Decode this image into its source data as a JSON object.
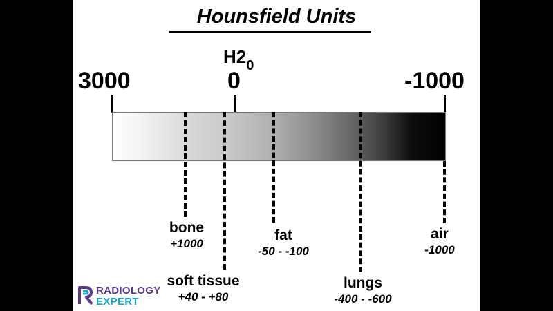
{
  "title": "Hounsfield Units",
  "water": {
    "main": "H2",
    "sub": "0"
  },
  "scale": {
    "left": "3000",
    "center": "0",
    "right": "-1000"
  },
  "markers": [
    {
      "id": "bone",
      "name": "bone",
      "value": "+1000"
    },
    {
      "id": "soft-tissue",
      "name": "soft tissue",
      "value": "+40 - +80"
    },
    {
      "id": "fat",
      "name": "fat",
      "value": "-50 - -100"
    },
    {
      "id": "lungs",
      "name": "lungs",
      "value": "-400 - -600"
    },
    {
      "id": "air",
      "name": "air",
      "value": "-1000"
    }
  ],
  "logo": {
    "line1": "RADIOLOGY",
    "line2": "EXPERT",
    "colors": {
      "primary": "#5b3a8c",
      "accent": "#19a7c9"
    }
  }
}
